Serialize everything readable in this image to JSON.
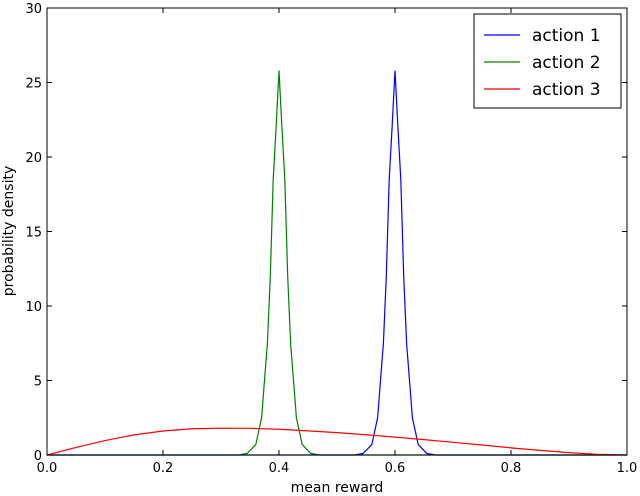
{
  "chart_data": {
    "type": "line",
    "xlabel": "mean reward",
    "ylabel": "probability density",
    "xlim": [
      0.0,
      1.0
    ],
    "ylim": [
      0,
      30
    ],
    "x_ticks": [
      "0.0",
      "0.2",
      "0.4",
      "0.6",
      "0.8",
      "1.0"
    ],
    "y_ticks": [
      "0",
      "5",
      "10",
      "15",
      "20",
      "25",
      "30"
    ],
    "grid": false,
    "legend_position": "top-right",
    "series": [
      {
        "name": "action 1",
        "color": "#0000ff",
        "x": [
          0.0,
          0.53,
          0.545,
          0.56,
          0.57,
          0.58,
          0.585,
          0.59,
          0.595,
          0.6,
          0.605,
          0.61,
          0.615,
          0.62,
          0.63,
          0.64,
          0.655,
          0.67,
          1.0
        ],
        "y": [
          0,
          0,
          0.1,
          0.7,
          2.5,
          7.5,
          12,
          18.5,
          22,
          25.8,
          22,
          18.5,
          12,
          7.5,
          2.5,
          0.7,
          0.1,
          0,
          0
        ]
      },
      {
        "name": "action 2",
        "color": "#008000",
        "x": [
          0.0,
          0.33,
          0.345,
          0.36,
          0.37,
          0.38,
          0.385,
          0.39,
          0.395,
          0.4,
          0.405,
          0.41,
          0.415,
          0.42,
          0.43,
          0.44,
          0.455,
          0.47,
          1.0
        ],
        "y": [
          0,
          0,
          0.1,
          0.7,
          2.5,
          7.5,
          12,
          18.5,
          22,
          25.8,
          22,
          18.5,
          12,
          7.5,
          2.5,
          0.7,
          0.1,
          0,
          0
        ]
      },
      {
        "name": "action 3",
        "color": "#ff0000",
        "x": [
          0.0,
          0.05,
          0.1,
          0.15,
          0.2,
          0.25,
          0.3,
          0.35,
          0.4,
          0.45,
          0.5,
          0.55,
          0.6,
          0.65,
          0.7,
          0.75,
          0.8,
          0.85,
          0.9,
          0.95,
          1.0
        ],
        "y": [
          0,
          0.51,
          0.97,
          1.35,
          1.61,
          1.76,
          1.8,
          1.79,
          1.73,
          1.62,
          1.5,
          1.36,
          1.2,
          1.03,
          0.85,
          0.67,
          0.48,
          0.31,
          0.16,
          0.04,
          0
        ]
      }
    ]
  }
}
